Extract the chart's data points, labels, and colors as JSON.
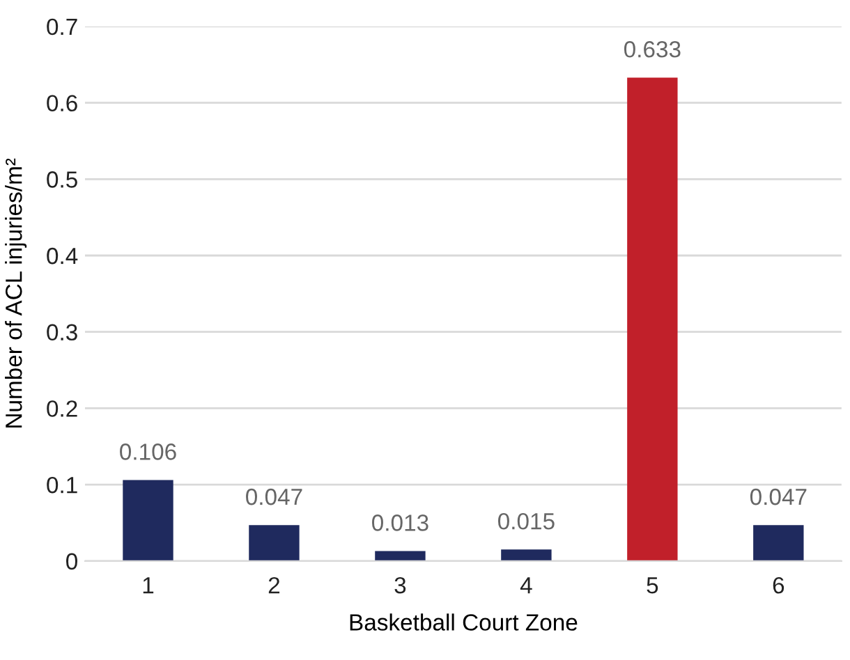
{
  "chart_data": {
    "type": "bar",
    "xlabel": "Basketball Court Zone",
    "ylabel": "Number of ACL injuries/m²",
    "categories": [
      "1",
      "2",
      "3",
      "4",
      "5",
      "6"
    ],
    "values": [
      0.106,
      0.047,
      0.013,
      0.015,
      0.633,
      0.047
    ],
    "colors": [
      "#1f2a5e",
      "#1f2a5e",
      "#1f2a5e",
      "#1f2a5e",
      "#c1202a",
      "#1f2a5e"
    ],
    "ylim": [
      0,
      0.7
    ],
    "yticks": [
      0,
      0.1,
      0.2,
      0.3,
      0.4,
      0.5,
      0.6,
      0.7
    ],
    "grid": "y",
    "data_labels": true
  }
}
